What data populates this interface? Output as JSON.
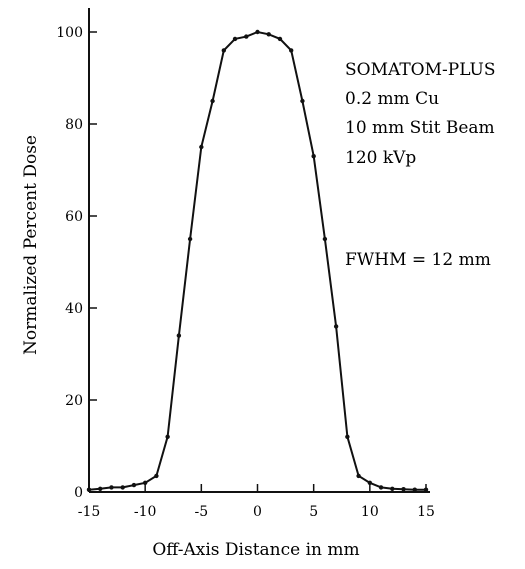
{
  "chart_data": {
    "type": "line",
    "title": "",
    "xlabel": "Off-Axis Distance in mm",
    "ylabel": "Normalized Percent Dose",
    "xlim": [
      -15,
      15
    ],
    "ylim": [
      0,
      100
    ],
    "xticks": [
      "-15",
      "-10",
      "-5",
      "0",
      "5",
      "10",
      "15"
    ],
    "yticks": [
      "0",
      "20",
      "40",
      "60",
      "80",
      "100"
    ],
    "grid": false,
    "annotations": [
      "SOMATOM-PLUS",
      "0.2 mm Cu",
      "10 mm Stit Beam",
      "120 kVp",
      "FWHM = 12 mm"
    ],
    "series": [
      {
        "x": [
          -15,
          -14,
          -13,
          -12,
          -11,
          -10,
          -9,
          -8,
          -7,
          -6,
          -5,
          -4,
          -3,
          -2,
          -1,
          0,
          1,
          2,
          3,
          4,
          5,
          6,
          7,
          8,
          9,
          10,
          11,
          12,
          13,
          14,
          15
        ],
        "y": [
          0.5,
          0.7,
          1,
          1,
          1.5,
          2,
          3.5,
          12,
          34,
          55,
          75,
          85,
          96,
          98.5,
          99,
          100,
          99.5,
          98.5,
          96,
          85,
          73,
          55,
          36,
          12,
          3.5,
          2,
          1,
          0.7,
          0.6,
          0.5,
          0.5
        ]
      }
    ]
  }
}
